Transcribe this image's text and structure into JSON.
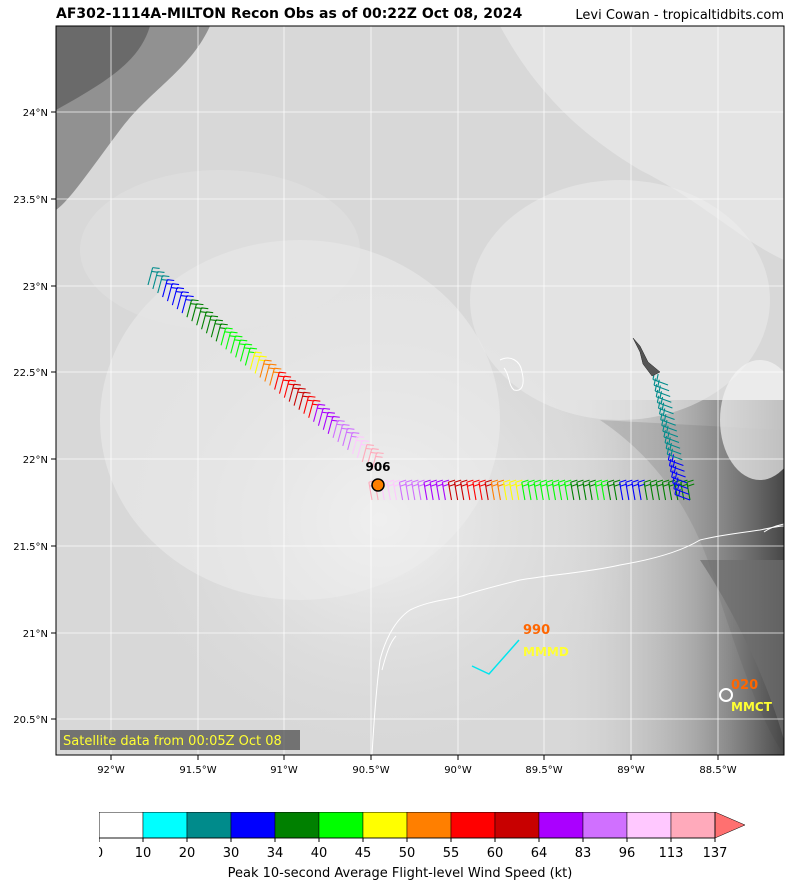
{
  "header": {
    "title": "AF302-1114A-MILTON Recon Obs as of 00:22Z Oct 08, 2024",
    "credit": "Levi Cowan - tropicaltidbits.com"
  },
  "map": {
    "lon_ticks": [
      "92°W",
      "91.5°W",
      "91°W",
      "90.5°W",
      "90°W",
      "89.5°W",
      "89°W",
      "88.5°W"
    ],
    "lat_ticks": [
      "24°N",
      "23.5°N",
      "23°N",
      "22.5°N",
      "22°N",
      "21.5°N",
      "21°N",
      "20.5°N"
    ],
    "satellite_note": "Satellite data from 00:05Z Oct 08",
    "center_pressure_label": "906",
    "stations": [
      {
        "id": "MMMD",
        "value": "990"
      },
      {
        "id": "MMCT",
        "value": "020"
      }
    ]
  },
  "colorbar": {
    "label": "Peak 10-second Average Flight-level Wind Speed (kt)",
    "ticks": [
      "0",
      "10",
      "20",
      "30",
      "34",
      "40",
      "45",
      "50",
      "55",
      "60",
      "64",
      "83",
      "96",
      "113",
      "137"
    ],
    "colors": [
      "#ffffff",
      "#00ffff",
      "#008b8b",
      "#0000ff",
      "#008000",
      "#00ff00",
      "#ffff00",
      "#ff7f00",
      "#ff0000",
      "#c80000",
      "#aa00ff",
      "#d070ff",
      "#ffc8ff",
      "#ffaabb"
    ]
  }
}
